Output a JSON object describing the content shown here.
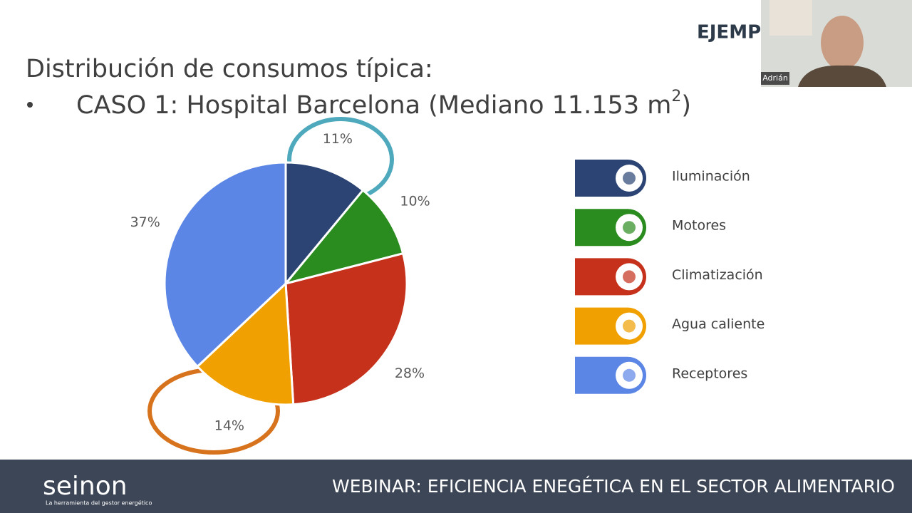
{
  "slide": {
    "heading": "Distribución de consumos típica:",
    "case_parts": [
      "CASO 1: Hospital Barcelona (Mediano 11.153 m",
      "2",
      ")"
    ],
    "corner_label": "EJEMP",
    "speaker_name": "Adrián",
    "logo": "seinon",
    "logo_tagline": "La herramienta del gestor energético",
    "footer": "WEBINAR: EFICIENCIA ENEGÉTICA EN EL SECTOR ALIMENTARIO"
  },
  "chart_data": {
    "type": "pie",
    "categories": [
      "Iluminación",
      "Motores",
      "Climatización",
      "Agua caliente",
      "Receptores"
    ],
    "values": [
      11,
      10,
      28,
      14,
      37
    ],
    "value_labels": [
      "11%",
      "10%",
      "28%",
      "14%",
      "37%"
    ],
    "colors": [
      "#2b4474",
      "#2a8c1e",
      "#c5311b",
      "#f0a000",
      "#5b86e5"
    ],
    "legend": "right"
  }
}
